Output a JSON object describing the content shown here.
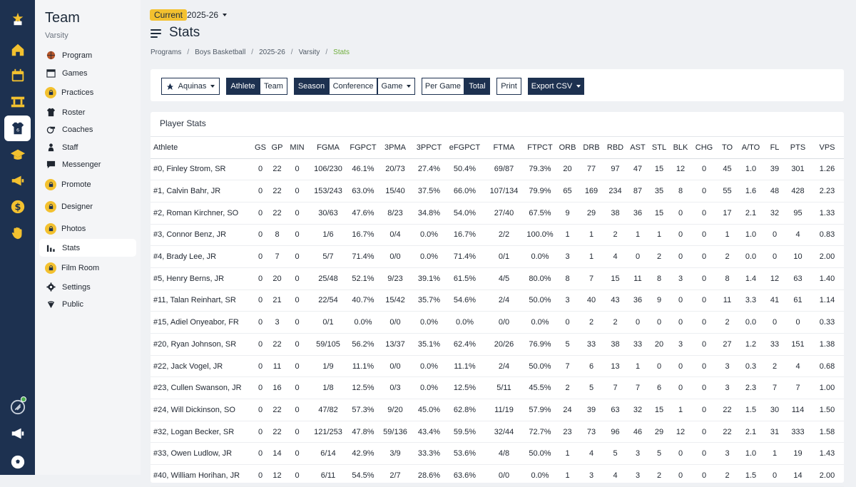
{
  "colors": {
    "rail": "#1d3150",
    "accent": "#f3c12f",
    "crumb_active": "#6fae3c"
  },
  "sidebar": {
    "title": "Team",
    "subtitle": "Varsity",
    "items": [
      {
        "label": "Program",
        "icon": "basketball-icon",
        "locked": false
      },
      {
        "label": "Games",
        "icon": "calendar-icon",
        "locked": false
      },
      {
        "label": "Practices",
        "icon": "lock-icon",
        "locked": true
      },
      {
        "label": "Roster",
        "icon": "jersey-icon",
        "locked": false
      },
      {
        "label": "Coaches",
        "icon": "whistle-icon",
        "locked": false
      },
      {
        "label": "Staff",
        "icon": "person-icon",
        "locked": false
      },
      {
        "label": "Messenger",
        "icon": "message-icon",
        "locked": false
      },
      {
        "label": "Promote",
        "icon": "lock-icon",
        "locked": true
      },
      {
        "label": "Designer",
        "icon": "lock-icon",
        "locked": true
      },
      {
        "label": "Photos",
        "icon": "lock-icon",
        "locked": true
      },
      {
        "label": "Stats",
        "icon": "bar-chart-icon",
        "locked": false
      },
      {
        "label": "Film Room",
        "icon": "lock-icon",
        "locked": true
      },
      {
        "label": "Settings",
        "icon": "gear-icon",
        "locked": false
      },
      {
        "label": "Public",
        "icon": "globe-icon",
        "locked": false
      }
    ]
  },
  "header": {
    "season_badge": "Current",
    "season": "2025-26",
    "title": "Stats",
    "breadcrumbs": [
      "Programs",
      "Boys Basketball",
      "2025-26",
      "Varsity",
      "Stats"
    ]
  },
  "toolbar": {
    "team_select": "Aquinas",
    "athlete": "Athlete",
    "team": "Team",
    "season": "Season",
    "conference": "Conference",
    "game": "Game",
    "per_game": "Per Game",
    "total": "Total",
    "print": "Print",
    "export": "Export CSV"
  },
  "stats_table": {
    "title": "Player Stats",
    "columns": [
      "Athlete",
      "GS",
      "GP",
      "MIN",
      "FGMA",
      "FGPCT",
      "3PMA",
      "3PPCT",
      "eFGPCT",
      "FTMA",
      "FTPCT",
      "ORB",
      "DRB",
      "RBD",
      "AST",
      "STL",
      "BLK",
      "CHG",
      "TO",
      "A/TO",
      "FL",
      "PTS",
      "VPS"
    ],
    "rows": [
      [
        "#0, Finley Strom, SR",
        "0",
        "22",
        "0",
        "106/230",
        "46.1%",
        "20/73",
        "27.4%",
        "50.4%",
        "69/87",
        "79.3%",
        "20",
        "77",
        "97",
        "47",
        "15",
        "12",
        "0",
        "45",
        "1.0",
        "39",
        "301",
        "1.26"
      ],
      [
        "#1, Calvin Bahr, JR",
        "0",
        "22",
        "0",
        "153/243",
        "63.0%",
        "15/40",
        "37.5%",
        "66.0%",
        "107/134",
        "79.9%",
        "65",
        "169",
        "234",
        "87",
        "35",
        "8",
        "0",
        "55",
        "1.6",
        "48",
        "428",
        "2.23"
      ],
      [
        "#2, Roman Kirchner, SO",
        "0",
        "22",
        "0",
        "30/63",
        "47.6%",
        "8/23",
        "34.8%",
        "54.0%",
        "27/40",
        "67.5%",
        "9",
        "29",
        "38",
        "36",
        "15",
        "0",
        "0",
        "17",
        "2.1",
        "32",
        "95",
        "1.33"
      ],
      [
        "#3, Connor Benz, JR",
        "0",
        "8",
        "0",
        "1/6",
        "16.7%",
        "0/4",
        "0.0%",
        "16.7%",
        "2/2",
        "100.0%",
        "1",
        "1",
        "2",
        "1",
        "1",
        "0",
        "0",
        "1",
        "1.0",
        "0",
        "4",
        "0.83"
      ],
      [
        "#4, Brady Lee, JR",
        "0",
        "7",
        "0",
        "5/7",
        "71.4%",
        "0/0",
        "0.0%",
        "71.4%",
        "0/1",
        "0.0%",
        "3",
        "1",
        "4",
        "0",
        "2",
        "0",
        "0",
        "2",
        "0.0",
        "0",
        "10",
        "2.00"
      ],
      [
        "#5, Henry Berns, JR",
        "0",
        "20",
        "0",
        "25/48",
        "52.1%",
        "9/23",
        "39.1%",
        "61.5%",
        "4/5",
        "80.0%",
        "8",
        "7",
        "15",
        "11",
        "8",
        "3",
        "0",
        "8",
        "1.4",
        "12",
        "63",
        "1.40"
      ],
      [
        "#11, Talan Reinhart, SR",
        "0",
        "21",
        "0",
        "22/54",
        "40.7%",
        "15/42",
        "35.7%",
        "54.6%",
        "2/4",
        "50.0%",
        "3",
        "40",
        "43",
        "36",
        "9",
        "0",
        "0",
        "11",
        "3.3",
        "41",
        "61",
        "1.14"
      ],
      [
        "#15, Adiel Onyeabor, FR",
        "0",
        "3",
        "0",
        "0/1",
        "0.0%",
        "0/0",
        "0.0%",
        "0.0%",
        "0/0",
        "0.0%",
        "0",
        "2",
        "2",
        "0",
        "0",
        "0",
        "0",
        "2",
        "0.0",
        "0",
        "0",
        "0.33"
      ],
      [
        "#20, Ryan Johnson, SR",
        "0",
        "22",
        "0",
        "59/105",
        "56.2%",
        "13/37",
        "35.1%",
        "62.4%",
        "20/26",
        "76.9%",
        "5",
        "33",
        "38",
        "33",
        "20",
        "3",
        "0",
        "27",
        "1.2",
        "33",
        "151",
        "1.38"
      ],
      [
        "#22, Jack Vogel, JR",
        "0",
        "11",
        "0",
        "1/9",
        "11.1%",
        "0/0",
        "0.0%",
        "11.1%",
        "2/4",
        "50.0%",
        "7",
        "6",
        "13",
        "1",
        "0",
        "0",
        "0",
        "3",
        "0.3",
        "2",
        "4",
        "0.68"
      ],
      [
        "#23, Cullen Swanson, JR",
        "0",
        "16",
        "0",
        "1/8",
        "12.5%",
        "0/3",
        "0.0%",
        "12.5%",
        "5/11",
        "45.5%",
        "2",
        "5",
        "7",
        "7",
        "6",
        "0",
        "0",
        "3",
        "2.3",
        "7",
        "7",
        "1.00"
      ],
      [
        "#24, Will Dickinson, SO",
        "0",
        "22",
        "0",
        "47/82",
        "57.3%",
        "9/20",
        "45.0%",
        "62.8%",
        "11/19",
        "57.9%",
        "24",
        "39",
        "63",
        "32",
        "15",
        "1",
        "0",
        "22",
        "1.5",
        "30",
        "114",
        "1.50"
      ],
      [
        "#32, Logan Becker, SR",
        "0",
        "22",
        "0",
        "121/253",
        "47.8%",
        "59/136",
        "43.4%",
        "59.5%",
        "32/44",
        "72.7%",
        "23",
        "73",
        "96",
        "46",
        "29",
        "12",
        "0",
        "22",
        "2.1",
        "31",
        "333",
        "1.58"
      ],
      [
        "#33, Owen Ludlow, JR",
        "0",
        "14",
        "0",
        "6/14",
        "42.9%",
        "3/9",
        "33.3%",
        "53.6%",
        "4/8",
        "50.0%",
        "1",
        "4",
        "5",
        "3",
        "5",
        "0",
        "0",
        "3",
        "1.0",
        "1",
        "19",
        "1.43"
      ],
      [
        "#40, William Horihan, JR",
        "0",
        "12",
        "0",
        "6/11",
        "54.5%",
        "2/7",
        "28.6%",
        "63.6%",
        "0/0",
        "0.0%",
        "1",
        "3",
        "4",
        "3",
        "2",
        "0",
        "0",
        "2",
        "1.5",
        "0",
        "14",
        "2.00"
      ]
    ]
  }
}
